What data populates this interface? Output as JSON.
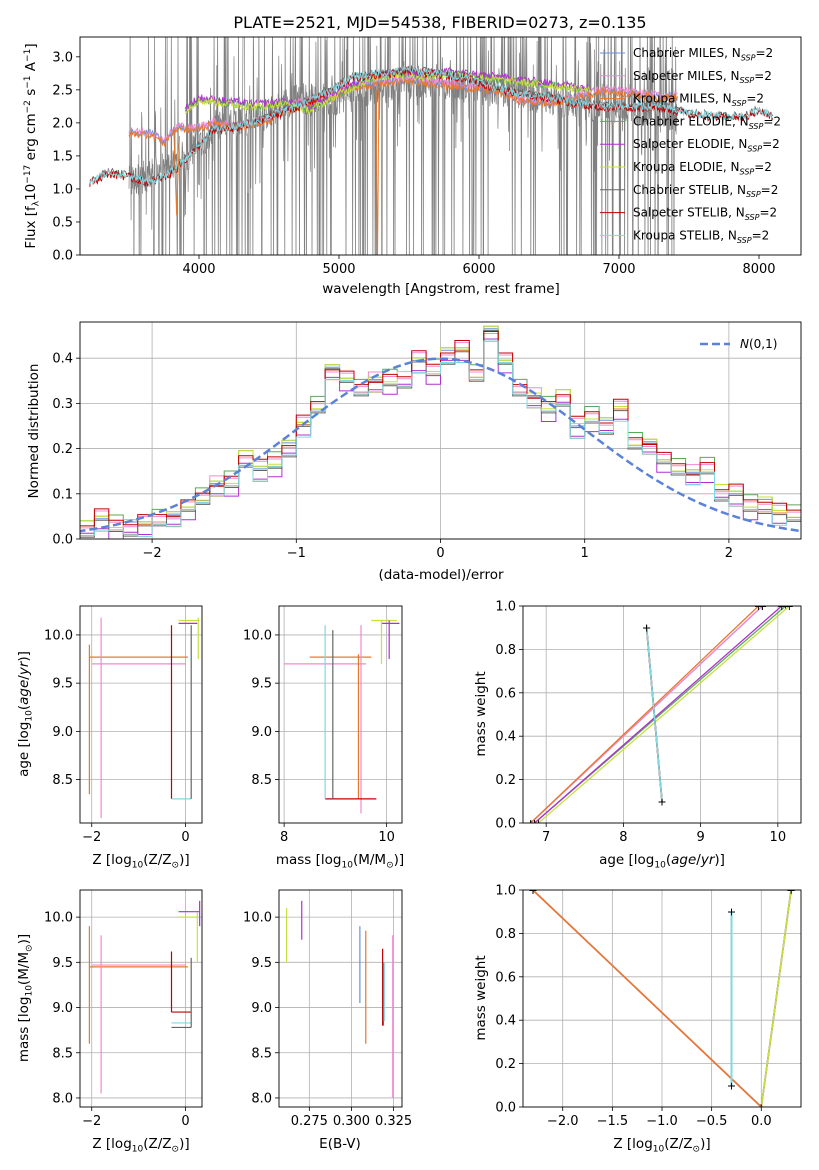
{
  "colors": {
    "series": [
      "#6a8fe0",
      "#f08ad0",
      "#e8782a",
      "#5aa85a",
      "#b030d0",
      "#c8e040",
      "#666666",
      "#c00000",
      "#80d8e0"
    ],
    "spectrum_data": "#808080",
    "gaussian": "#5a82d8",
    "grid": "#b0b0b0"
  },
  "chart_data": [
    {
      "type": "line",
      "title": "PLATE=2521, MJD=54538, FIBERID=0273, z=0.135",
      "xlabel": "wavelength [Angstrom, rest frame]",
      "ylabel": "Flux [f$_\\lambda$10$^{-17}$ erg cm$^{-2}$ s$^{-1}$ A$^{-1}$]",
      "xlim": [
        3150,
        8300
      ],
      "ylim": [
        0,
        3.3
      ],
      "xticks": [
        "4000",
        "5000",
        "6000",
        "7000",
        "8000"
      ],
      "yticks": [
        "0.0",
        "0.5",
        "1.0",
        "1.5",
        "2.0",
        "2.5",
        "3.0"
      ],
      "grid": false,
      "legend_position": "top-right",
      "legend": [
        "Chabrier MILES, N$_{SSP}$=2",
        "Salpeter MILES, N$_{SSP}$=2",
        "Kroupa MILES, N$_{SSP}$=2",
        "Chabrier ELODIE, N$_{SSP}$=2",
        "Salpeter ELODIE, N$_{SSP}$=2",
        "Kroupa ELODIE, N$_{SSP}$=2",
        "Chabrier STELIB, N$_{SSP}$=2",
        "Salpeter STELIB, N$_{SSP}$=2",
        "Kroupa STELIB, N$_{SSP}$=2"
      ],
      "data_spectrum": {
        "x_range": [
          3500,
          7420
        ],
        "points": [
          [
            3500,
            1.1
          ],
          [
            3700,
            1.25
          ],
          [
            3900,
            1.5
          ],
          [
            4100,
            1.9
          ],
          [
            4300,
            2.0
          ],
          [
            4500,
            2.15
          ],
          [
            4700,
            2.4
          ],
          [
            4900,
            2.3
          ],
          [
            5100,
            2.45
          ],
          [
            5300,
            2.55
          ],
          [
            5500,
            2.6
          ],
          [
            5700,
            2.65
          ],
          [
            5900,
            2.55
          ],
          [
            6100,
            2.5
          ],
          [
            6300,
            2.45
          ],
          [
            6500,
            2.35
          ],
          [
            6700,
            2.3
          ],
          [
            6900,
            2.25
          ],
          [
            7100,
            2.2
          ],
          [
            7300,
            2.15
          ],
          [
            7420,
            2.1
          ]
        ]
      },
      "models": {
        "miles": {
          "x_range": [
            3500,
            7420
          ],
          "points": [
            [
              3500,
              1.85
            ],
            [
              3650,
              1.85
            ],
            [
              3750,
              1.72
            ],
            [
              3850,
              1.95
            ],
            [
              3950,
              1.9
            ],
            [
              4100,
              2.0
            ],
            [
              4300,
              1.95
            ],
            [
              4500,
              2.05
            ],
            [
              4700,
              2.3
            ],
            [
              4900,
              2.35
            ],
            [
              5100,
              2.55
            ],
            [
              5300,
              2.6
            ],
            [
              5500,
              2.65
            ],
            [
              5700,
              2.6
            ],
            [
              5900,
              2.55
            ],
            [
              6100,
              2.5
            ],
            [
              6300,
              2.35
            ],
            [
              6500,
              2.3
            ],
            [
              6700,
              2.4
            ],
            [
              6900,
              2.5
            ],
            [
              7100,
              2.45
            ],
            [
              7300,
              2.4
            ],
            [
              7420,
              2.4
            ]
          ]
        },
        "elodie": {
          "x_range": [
            3900,
            6800
          ],
          "points": [
            [
              3900,
              2.2
            ],
            [
              4000,
              2.35
            ],
            [
              4200,
              2.3
            ],
            [
              4400,
              2.25
            ],
            [
              4600,
              2.3
            ],
            [
              4800,
              2.2
            ],
            [
              5000,
              2.45
            ],
            [
              5200,
              2.65
            ],
            [
              5400,
              2.75
            ],
            [
              5600,
              2.7
            ],
            [
              5800,
              2.75
            ],
            [
              6000,
              2.7
            ],
            [
              6200,
              2.65
            ],
            [
              6400,
              2.6
            ],
            [
              6600,
              2.55
            ],
            [
              6800,
              2.5
            ]
          ]
        },
        "stelib": {
          "x_range": [
            3220,
            8100
          ],
          "points": [
            [
              3220,
              1.1
            ],
            [
              3350,
              1.25
            ],
            [
              3500,
              1.2
            ],
            [
              3650,
              1.1
            ],
            [
              3800,
              1.25
            ],
            [
              3950,
              1.55
            ],
            [
              4100,
              1.9
            ],
            [
              4300,
              1.95
            ],
            [
              4500,
              2.1
            ],
            [
              4700,
              2.25
            ],
            [
              4900,
              2.45
            ],
            [
              5100,
              2.7
            ],
            [
              5300,
              2.75
            ],
            [
              5500,
              2.8
            ],
            [
              5700,
              2.75
            ],
            [
              5900,
              2.7
            ],
            [
              6100,
              2.55
            ],
            [
              6300,
              2.45
            ],
            [
              6500,
              2.4
            ],
            [
              6700,
              2.3
            ],
            [
              6900,
              2.25
            ],
            [
              7100,
              2.25
            ],
            [
              7300,
              2.25
            ],
            [
              7500,
              2.15
            ],
            [
              7700,
              2.1
            ],
            [
              7900,
              2.1
            ],
            [
              8000,
              2.2
            ],
            [
              8100,
              2.1
            ]
          ]
        }
      }
    },
    {
      "type": "line",
      "xlabel": "(data-model)/error",
      "ylabel": "Normed distribution",
      "xlim": [
        -2.5,
        2.5
      ],
      "ylim": [
        0,
        0.48
      ],
      "xticks": [
        "−2",
        "−1",
        "0",
        "1",
        "2"
      ],
      "yticks": [
        "0.0",
        "0.1",
        "0.2",
        "0.3",
        "0.4"
      ],
      "grid": true,
      "legend_position": "top-right",
      "legend": [
        "$\\mathcal{N}(0,1)$"
      ],
      "bin_width": 0.1,
      "histogram_centers": [
        -2.45,
        -2.35,
        -2.25,
        -2.15,
        -2.05,
        -1.95,
        -1.85,
        -1.75,
        -1.65,
        -1.55,
        -1.45,
        -1.35,
        -1.25,
        -1.15,
        -1.05,
        -0.95,
        -0.85,
        -0.75,
        -0.65,
        -0.55,
        -0.45,
        -0.35,
        -0.25,
        -0.15,
        -0.05,
        0.05,
        0.15,
        0.25,
        0.35,
        0.45,
        0.55,
        0.65,
        0.75,
        0.85,
        0.95,
        1.05,
        1.15,
        1.25,
        1.35,
        1.45,
        1.55,
        1.65,
        1.75,
        1.85,
        1.95,
        2.05,
        2.15,
        2.25,
        2.35,
        2.45
      ],
      "histogram_values": [
        0.02,
        0.04,
        0.025,
        0.025,
        0.03,
        0.04,
        0.045,
        0.065,
        0.09,
        0.115,
        0.12,
        0.175,
        0.15,
        0.165,
        0.2,
        0.25,
        0.29,
        0.37,
        0.35,
        0.33,
        0.345,
        0.345,
        0.35,
        0.39,
        0.37,
        0.405,
        0.415,
        0.36,
        0.455,
        0.39,
        0.33,
        0.31,
        0.285,
        0.31,
        0.245,
        0.265,
        0.25,
        0.285,
        0.21,
        0.205,
        0.17,
        0.155,
        0.14,
        0.15,
        0.1,
        0.095,
        0.07,
        0.075,
        0.055,
        0.05
      ],
      "model_offsets": [
        0.0,
        0.012,
        -0.01,
        0.018,
        -0.015,
        0.008,
        -0.006,
        0.014,
        -0.012
      ]
    },
    {
      "type": "scatter",
      "xlabel": "Z [log$_{10}$(Z/Z$_\\odot$)]",
      "ylabel": "age  [log$_{10}$($age/yr$)]",
      "xlim": [
        -2.25,
        0.35
      ],
      "ylim": [
        8.05,
        10.3
      ],
      "xticks": [
        "−2",
        "0"
      ],
      "yticks": [
        "8.5",
        "9.0",
        "9.5",
        "10.0"
      ],
      "grid": true,
      "description": "error-bar crosses per model"
    },
    {
      "type": "scatter",
      "xlabel": "mass [log$_{10}$(M/M$_\\odot$)]",
      "xlim": [
        7.9,
        10.3
      ],
      "ylim": [
        8.05,
        10.3
      ],
      "xticks": [
        "8",
        "10"
      ],
      "yticks": [
        "8.5",
        "9.0",
        "9.5",
        "10.0"
      ],
      "grid": true
    },
    {
      "type": "line",
      "xlabel": "age  [log$_{10}$($age/yr$)]",
      "ylabel": "mass weight",
      "xlim": [
        6.7,
        10.3
      ],
      "ylim": [
        0,
        1
      ],
      "xticks": [
        "7",
        "8",
        "9",
        "10"
      ],
      "yticks": [
        "0.0",
        "0.2",
        "0.4",
        "0.6",
        "0.8",
        "1.0"
      ],
      "grid": true,
      "series": [
        {
          "x": [
            6.8,
            9.8
          ],
          "y": [
            0.0,
            1.0
          ]
        },
        {
          "x": [
            6.8,
            9.8
          ],
          "y": [
            0.0,
            1.0
          ]
        },
        {
          "x": [
            6.8,
            9.75
          ],
          "y": [
            0.0,
            1.0
          ]
        },
        {
          "x": [
            6.85,
            10.1
          ],
          "y": [
            0.0,
            1.0
          ]
        },
        {
          "x": [
            6.85,
            10.05
          ],
          "y": [
            0.0,
            1.0
          ]
        },
        {
          "x": [
            6.9,
            10.15
          ],
          "y": [
            0.0,
            1.0
          ]
        },
        {
          "x": [
            8.3,
            8.5
          ],
          "y": [
            0.9,
            0.1
          ]
        },
        {
          "x": [
            8.3,
            8.5
          ],
          "y": [
            0.9,
            0.1
          ]
        },
        {
          "x": [
            8.3,
            8.5
          ],
          "y": [
            0.9,
            0.1
          ]
        }
      ]
    },
    {
      "type": "scatter",
      "xlabel": "Z [log$_{10}$(Z/Z$_\\odot$)]",
      "ylabel": "mass [log$_{10}$(M/M$_\\odot$)]",
      "xlim": [
        -2.25,
        0.35
      ],
      "ylim": [
        7.9,
        10.3
      ],
      "xticks": [
        "−2",
        "0"
      ],
      "yticks": [
        "8.0",
        "8.5",
        "9.0",
        "9.5",
        "10.0"
      ],
      "grid": true
    },
    {
      "type": "scatter",
      "xlabel": "E(B-V)",
      "xlim": [
        0.257,
        0.33
      ],
      "ylim": [
        7.9,
        10.3
      ],
      "xticks": [
        "0.275",
        "0.300",
        "0.325"
      ],
      "yticks": [
        "8.0",
        "8.5",
        "9.0",
        "9.5",
        "10.0"
      ],
      "grid": true
    },
    {
      "type": "line",
      "xlabel": "Z [log$_{10}$(Z/Z$_\\odot$)]",
      "ylabel": "mass weight",
      "xlim": [
        -2.4,
        0.4
      ],
      "ylim": [
        0,
        1
      ],
      "xticks": [
        "−2.0",
        "−1.5",
        "−1.0",
        "−0.5",
        "0.0"
      ],
      "yticks": [
        "0.0",
        "0.2",
        "0.4",
        "0.6",
        "0.8",
        "1.0"
      ],
      "grid": true,
      "series": [
        {
          "x": [
            -2.3,
            0.0
          ],
          "y": [
            1.0,
            0.0
          ]
        },
        {
          "x": [
            -2.3,
            0.0
          ],
          "y": [
            1.0,
            0.0
          ]
        },
        {
          "x": [
            -2.3,
            0.0
          ],
          "y": [
            1.0,
            0.0
          ]
        },
        {
          "x": [
            0.0,
            0.3
          ],
          "y": [
            0.0,
            1.0
          ]
        },
        {
          "x": [
            0.0,
            0.3
          ],
          "y": [
            0.0,
            1.0
          ]
        },
        {
          "x": [
            0.0,
            0.3
          ],
          "y": [
            0.0,
            1.0
          ]
        },
        {
          "x": [
            -0.3,
            -0.3
          ],
          "y": [
            0.9,
            0.1
          ]
        },
        {
          "x": [
            -0.3,
            -0.3
          ],
          "y": [
            0.9,
            0.1
          ]
        },
        {
          "x": [
            -0.3,
            -0.3
          ],
          "y": [
            0.9,
            0.1
          ]
        }
      ]
    }
  ]
}
